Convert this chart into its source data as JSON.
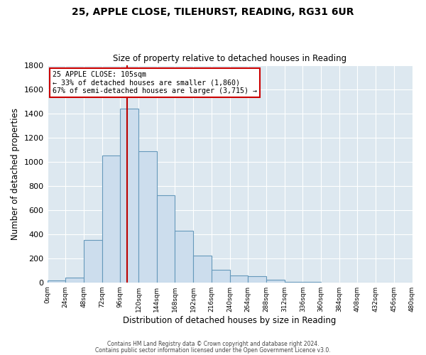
{
  "title": "25, APPLE CLOSE, TILEHURST, READING, RG31 6UR",
  "subtitle": "Size of property relative to detached houses in Reading",
  "xlabel": "Distribution of detached houses by size in Reading",
  "ylabel": "Number of detached properties",
  "bar_color": "#ccdded",
  "bar_edge_color": "#6699bb",
  "background_color": "#dde8f0",
  "fig_background_color": "#ffffff",
  "grid_color": "#ffffff",
  "bins": [
    0,
    24,
    48,
    72,
    96,
    120,
    144,
    168,
    192,
    216,
    240,
    264,
    288,
    312,
    336,
    360,
    384,
    408,
    432,
    456,
    480
  ],
  "heights": [
    15,
    40,
    350,
    1050,
    1440,
    1090,
    720,
    430,
    220,
    105,
    55,
    50,
    20,
    5,
    2,
    1,
    1,
    0,
    0,
    0
  ],
  "property_size": 105,
  "vline_color": "#bb0000",
  "annotation_line1": "25 APPLE CLOSE: 105sqm",
  "annotation_line2": "← 33% of detached houses are smaller (1,860)",
  "annotation_line3": "67% of semi-detached houses are larger (3,715) →",
  "annotation_box_color": "#ffffff",
  "annotation_box_edge": "#cc0000",
  "ylim": [
    0,
    1800
  ],
  "yticks": [
    0,
    200,
    400,
    600,
    800,
    1000,
    1200,
    1400,
    1600,
    1800
  ],
  "footer_line1": "Contains HM Land Registry data © Crown copyright and database right 2024.",
  "footer_line2": "Contains public sector information licensed under the Open Government Licence v3.0."
}
